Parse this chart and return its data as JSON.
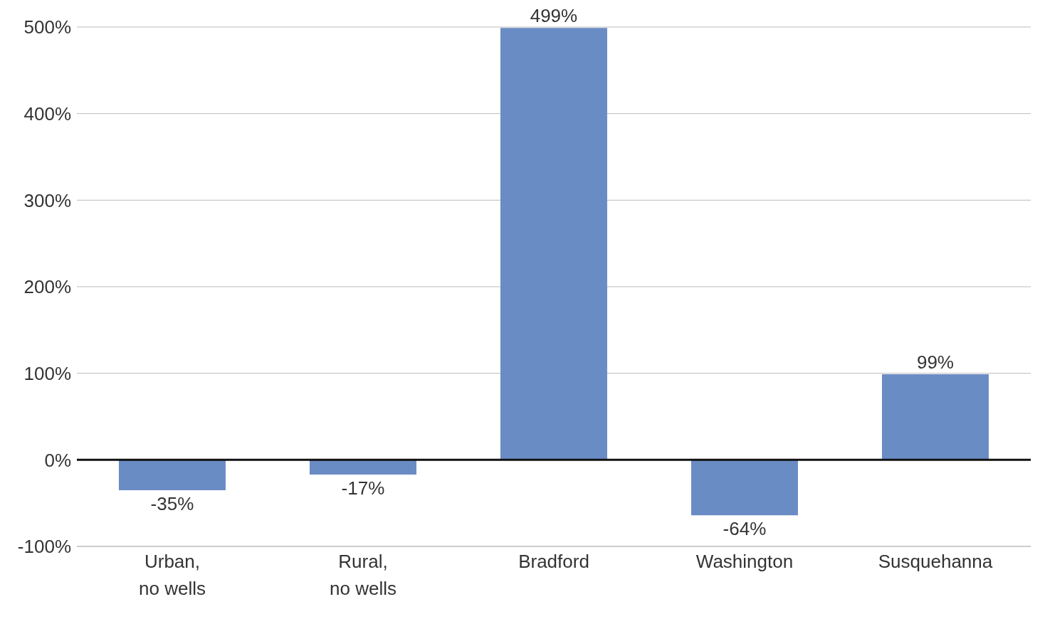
{
  "chart_data": {
    "type": "bar",
    "categories": [
      "Urban,\nno wells",
      "Rural,\nno wells",
      "Bradford",
      "Washington",
      "Susquehanna"
    ],
    "values": [
      -35,
      -17,
      499,
      -64,
      99
    ],
    "value_labels": [
      "-35%",
      "-17%",
      "499%",
      "-64%",
      "99%"
    ],
    "color": "#6a8cc4",
    "ylim": [
      -100,
      500
    ],
    "yticks": [
      {
        "value": -100,
        "label": "-100%"
      },
      {
        "value": 0,
        "label": "0%"
      },
      {
        "value": 100,
        "label": "100%"
      },
      {
        "value": 200,
        "label": "200%"
      },
      {
        "value": 300,
        "label": "300%"
      },
      {
        "value": 400,
        "label": "400%"
      },
      {
        "value": 500,
        "label": "500%"
      }
    ],
    "grid": "y"
  }
}
